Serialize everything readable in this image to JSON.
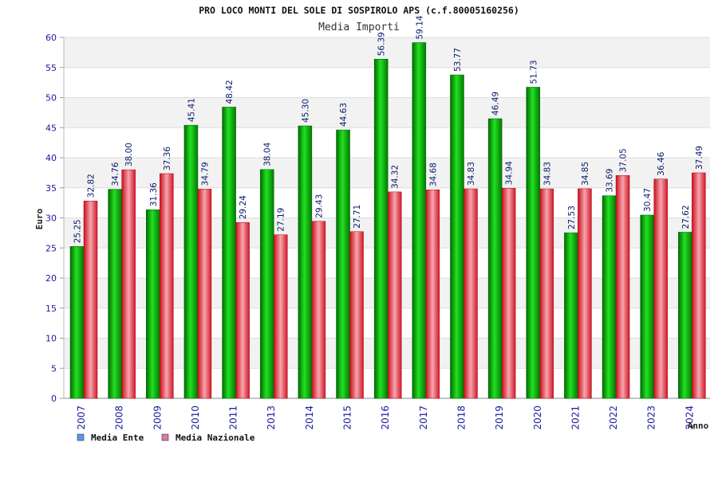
{
  "chart_data": {
    "type": "bar",
    "title": "PRO LOCO MONTI DEL SOLE DI SOSPIROLO APS (c.f.80005160256)",
    "subtitle": "Media Importi",
    "xlabel": "Anno",
    "ylabel": "Euro",
    "ylim": [
      0,
      60
    ],
    "y_ticks": [
      0,
      5,
      10,
      15,
      20,
      25,
      30,
      35,
      40,
      45,
      50,
      55,
      60
    ],
    "grid": true,
    "legend_placement": "bottom-left",
    "categories": [
      "2007",
      "2008",
      "2009",
      "2010",
      "2011",
      "2013",
      "2014",
      "2015",
      "2016",
      "2017",
      "2018",
      "2019",
      "2020",
      "2021",
      "2022",
      "2023",
      "2024"
    ],
    "series": [
      {
        "name": "Media Ente",
        "color": "#00b400",
        "legend_color": "#5599ee",
        "values": [
          25.25,
          34.76,
          31.36,
          45.41,
          48.42,
          38.04,
          45.3,
          44.63,
          56.39,
          59.14,
          53.77,
          46.49,
          51.73,
          27.53,
          33.69,
          30.47,
          27.62
        ],
        "labels": [
          "25.25",
          "34.76",
          "31.36",
          "45.41",
          "48.42",
          "38.04",
          "45.30",
          "44.63",
          "56.39",
          "59.14",
          "53.77",
          "46.49",
          "51.73",
          "27.53",
          "33.69",
          "30.47",
          "27.62"
        ]
      },
      {
        "name": "Media Nazionale",
        "color": "#e8303c",
        "legend_color": "#dd77aa",
        "values": [
          32.82,
          38.0,
          37.36,
          34.79,
          29.24,
          27.19,
          29.43,
          27.71,
          34.32,
          34.68,
          34.83,
          34.94,
          34.83,
          34.85,
          37.05,
          36.46,
          37.49
        ],
        "labels": [
          "32.82",
          "38.00",
          "37.36",
          "34.79",
          "29.24",
          "27.19",
          "29.43",
          "27.71",
          "34.32",
          "34.68",
          "34.83",
          "34.94",
          "34.83",
          "34.85",
          "37.05",
          "36.46",
          "37.49"
        ]
      }
    ]
  }
}
